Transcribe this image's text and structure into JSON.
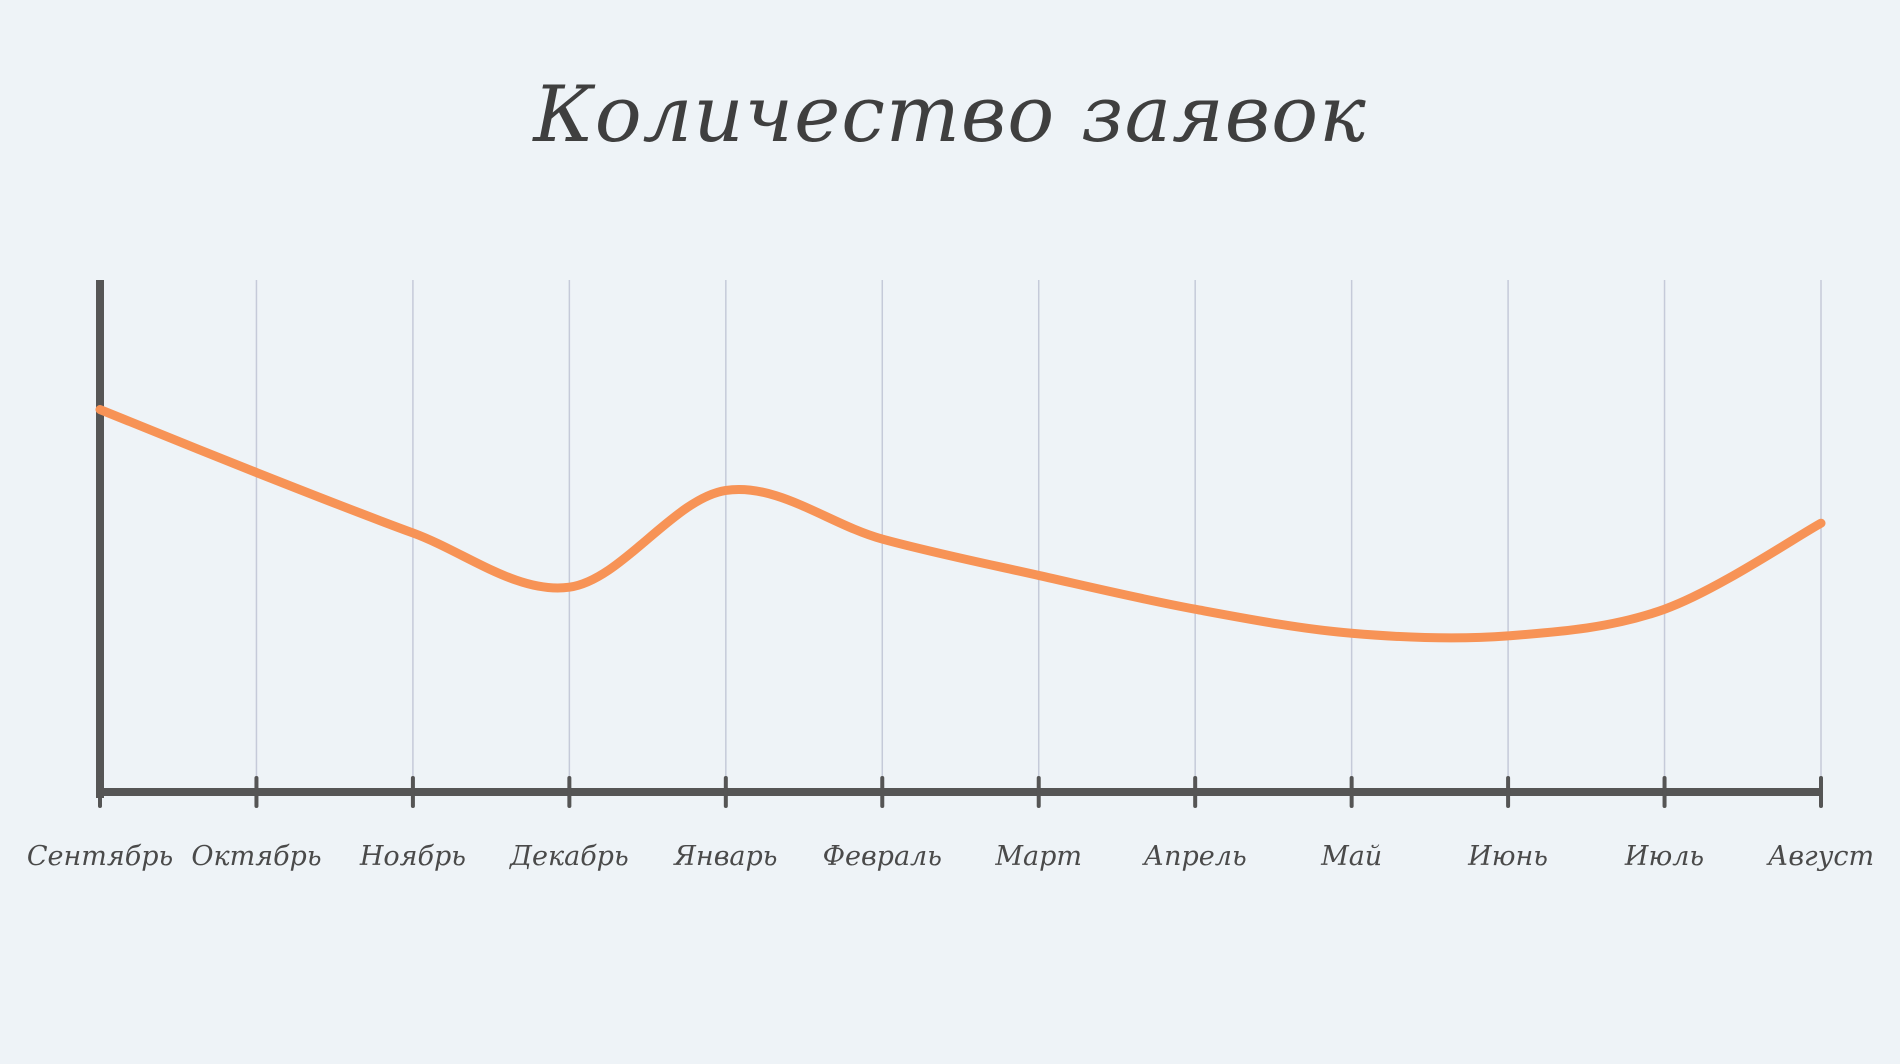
{
  "chart_data": {
    "type": "line",
    "title": "Количество заявок",
    "xlabel": "",
    "ylabel": "",
    "categories": [
      "Сентябрь",
      "Октябрь",
      "Ноябрь",
      "Декабрь",
      "Январь",
      "Февраль",
      "Март",
      "Апрель",
      "Май",
      "Июнь",
      "Июль",
      "Август"
    ],
    "series": [
      {
        "values": [
          74.7,
          62.4,
          50.6,
          40,
          58.9,
          49.4,
          42.3,
          35.7,
          31,
          30.5,
          35.7,
          52.5
        ]
      }
    ],
    "ylim": [
      0,
      100
    ],
    "y_ticks_shown": false,
    "grid": "vertical",
    "colors": {
      "line": "#f79356",
      "axis": "#555555",
      "grid": "#c5cad9",
      "background": "#eef3f7",
      "text": "#3f3f3f"
    }
  }
}
